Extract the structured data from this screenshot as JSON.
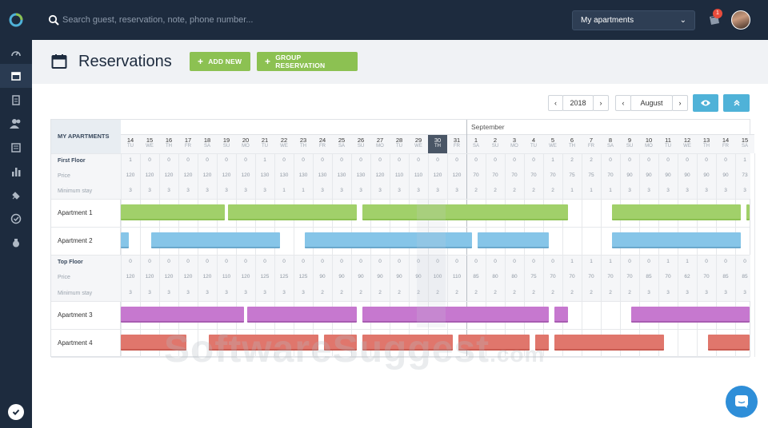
{
  "search": {
    "placeholder": "Search guest, reservation, note, phone number..."
  },
  "apartment_select": {
    "value": "My apartments"
  },
  "notifications": {
    "count": "1"
  },
  "page": {
    "title": "Reservations"
  },
  "buttons": {
    "add_new": "ADD NEW",
    "group_reservation": "GROUP RESERVATION"
  },
  "controls": {
    "year": "2018",
    "month": "August"
  },
  "grid": {
    "header": "MY APARTMENTS",
    "month_label": "September",
    "days": [
      {
        "n": "14",
        "w": "TU"
      },
      {
        "n": "15",
        "w": "WE"
      },
      {
        "n": "16",
        "w": "TH"
      },
      {
        "n": "17",
        "w": "FR"
      },
      {
        "n": "18",
        "w": "SA"
      },
      {
        "n": "19",
        "w": "SU"
      },
      {
        "n": "20",
        "w": "MO"
      },
      {
        "n": "21",
        "w": "TU"
      },
      {
        "n": "22",
        "w": "WE"
      },
      {
        "n": "23",
        "w": "TH"
      },
      {
        "n": "24",
        "w": "FR"
      },
      {
        "n": "25",
        "w": "SA"
      },
      {
        "n": "26",
        "w": "SU"
      },
      {
        "n": "27",
        "w": "MO"
      },
      {
        "n": "28",
        "w": "TU"
      },
      {
        "n": "29",
        "w": "WE"
      },
      {
        "n": "30",
        "w": "TH"
      },
      {
        "n": "31",
        "w": "FR"
      },
      {
        "n": "1",
        "w": "SA"
      },
      {
        "n": "2",
        "w": "SU"
      },
      {
        "n": "3",
        "w": "MO"
      },
      {
        "n": "4",
        "w": "TU"
      },
      {
        "n": "5",
        "w": "WE"
      },
      {
        "n": "6",
        "w": "TH"
      },
      {
        "n": "7",
        "w": "FR"
      },
      {
        "n": "8",
        "w": "SA"
      },
      {
        "n": "9",
        "w": "SU"
      },
      {
        "n": "10",
        "w": "MO"
      },
      {
        "n": "11",
        "w": "TU"
      },
      {
        "n": "12",
        "w": "WE"
      },
      {
        "n": "13",
        "w": "TH"
      },
      {
        "n": "14",
        "w": "FR"
      },
      {
        "n": "15",
        "w": "SA"
      }
    ],
    "today_index": 16,
    "floors": [
      {
        "name": "First Floor",
        "available": [
          "1",
          "0",
          "0",
          "0",
          "0",
          "0",
          "0",
          "1",
          "0",
          "0",
          "0",
          "0",
          "0",
          "0",
          "0",
          "0",
          "0",
          "0",
          "0",
          "0",
          "0",
          "0",
          "1",
          "2",
          "2",
          "0",
          "0",
          "0",
          "0",
          "0",
          "0",
          "0",
          "1"
        ],
        "price_label": "Price",
        "prices": [
          "120",
          "120",
          "120",
          "120",
          "120",
          "120",
          "120",
          "130",
          "130",
          "130",
          "130",
          "130",
          "130",
          "120",
          "110",
          "110",
          "120",
          "120",
          "70",
          "70",
          "70",
          "70",
          "70",
          "75",
          "75",
          "70",
          "90",
          "90",
          "90",
          "90",
          "90",
          "90",
          "73"
        ],
        "min_stay_label": "Minimum stay",
        "min_stay": [
          "3",
          "3",
          "3",
          "3",
          "3",
          "3",
          "3",
          "3",
          "1",
          "1",
          "3",
          "3",
          "3",
          "3",
          "3",
          "3",
          "3",
          "3",
          "2",
          "2",
          "2",
          "2",
          "2",
          "1",
          "1",
          "1",
          "3",
          "3",
          "3",
          "3",
          "3",
          "3",
          "3"
        ],
        "apartments": [
          {
            "name": "Apartment 1",
            "color": "green",
            "bookings": [
              {
                "start": 0,
                "len": 5.4
              },
              {
                "start": 5.6,
                "len": 6.7
              },
              {
                "start": 12.6,
                "len": 10.7
              },
              {
                "start": 25.6,
                "len": 6.7
              },
              {
                "start": 32.6,
                "len": 0.4
              }
            ]
          },
          {
            "name": "Apartment 2",
            "color": "blue",
            "bookings": [
              {
                "start": 0,
                "len": 0.4
              },
              {
                "start": 1.6,
                "len": 6.7
              },
              {
                "start": 9.6,
                "len": 8.7
              },
              {
                "start": 18.6,
                "len": 3.7
              },
              {
                "start": 25.6,
                "len": 6.7
              }
            ]
          }
        ]
      },
      {
        "name": "Top Floor",
        "available": [
          "0",
          "0",
          "0",
          "0",
          "0",
          "0",
          "0",
          "0",
          "0",
          "0",
          "0",
          "0",
          "0",
          "0",
          "0",
          "0",
          "0",
          "0",
          "0",
          "0",
          "0",
          "0",
          "0",
          "1",
          "1",
          "1",
          "0",
          "0",
          "1",
          "1",
          "0",
          "0",
          "0"
        ],
        "price_label": "Price",
        "prices": [
          "120",
          "120",
          "120",
          "120",
          "120",
          "110",
          "120",
          "125",
          "125",
          "125",
          "90",
          "90",
          "90",
          "90",
          "90",
          "90",
          "100",
          "110",
          "85",
          "80",
          "80",
          "75",
          "70",
          "70",
          "70",
          "70",
          "70",
          "85",
          "70",
          "62",
          "70",
          "85",
          "85"
        ],
        "min_stay_label": "Minimum stay",
        "min_stay": [
          "3",
          "3",
          "3",
          "3",
          "3",
          "3",
          "3",
          "3",
          "3",
          "3",
          "2",
          "2",
          "2",
          "2",
          "2",
          "2",
          "2",
          "2",
          "2",
          "2",
          "2",
          "2",
          "2",
          "2",
          "2",
          "2",
          "2",
          "3",
          "3",
          "3",
          "3",
          "3",
          "3"
        ],
        "apartments": [
          {
            "name": "Apartment 3",
            "color": "purple",
            "bookings": [
              {
                "start": 0,
                "len": 6.4
              },
              {
                "start": 6.6,
                "len": 5.7
              },
              {
                "start": 12.6,
                "len": 9.7
              },
              {
                "start": 22.6,
                "len": 0.7
              },
              {
                "start": 26.6,
                "len": 6.4
              }
            ]
          },
          {
            "name": "Apartment 4",
            "color": "red",
            "bookings": [
              {
                "start": 0,
                "len": 3.4
              },
              {
                "start": 4.6,
                "len": 5.7
              },
              {
                "start": 10.6,
                "len": 1.7
              },
              {
                "start": 12.6,
                "len": 4.7
              },
              {
                "start": 17.6,
                "len": 3.7
              },
              {
                "start": 21.6,
                "len": 0.7
              },
              {
                "start": 22.6,
                "len": 5.7
              },
              {
                "start": 30.6,
                "len": 2.4
              }
            ]
          }
        ]
      }
    ]
  },
  "watermark": {
    "text": "SoftwareSuggest",
    "suffix": ".com"
  },
  "colors": {
    "sidebar": "#1d2b3e",
    "green": "#8cc152",
    "teal": "#4fb2d8",
    "blue": "#86c5e8",
    "purple": "#c678cf",
    "red": "#e0766c"
  }
}
